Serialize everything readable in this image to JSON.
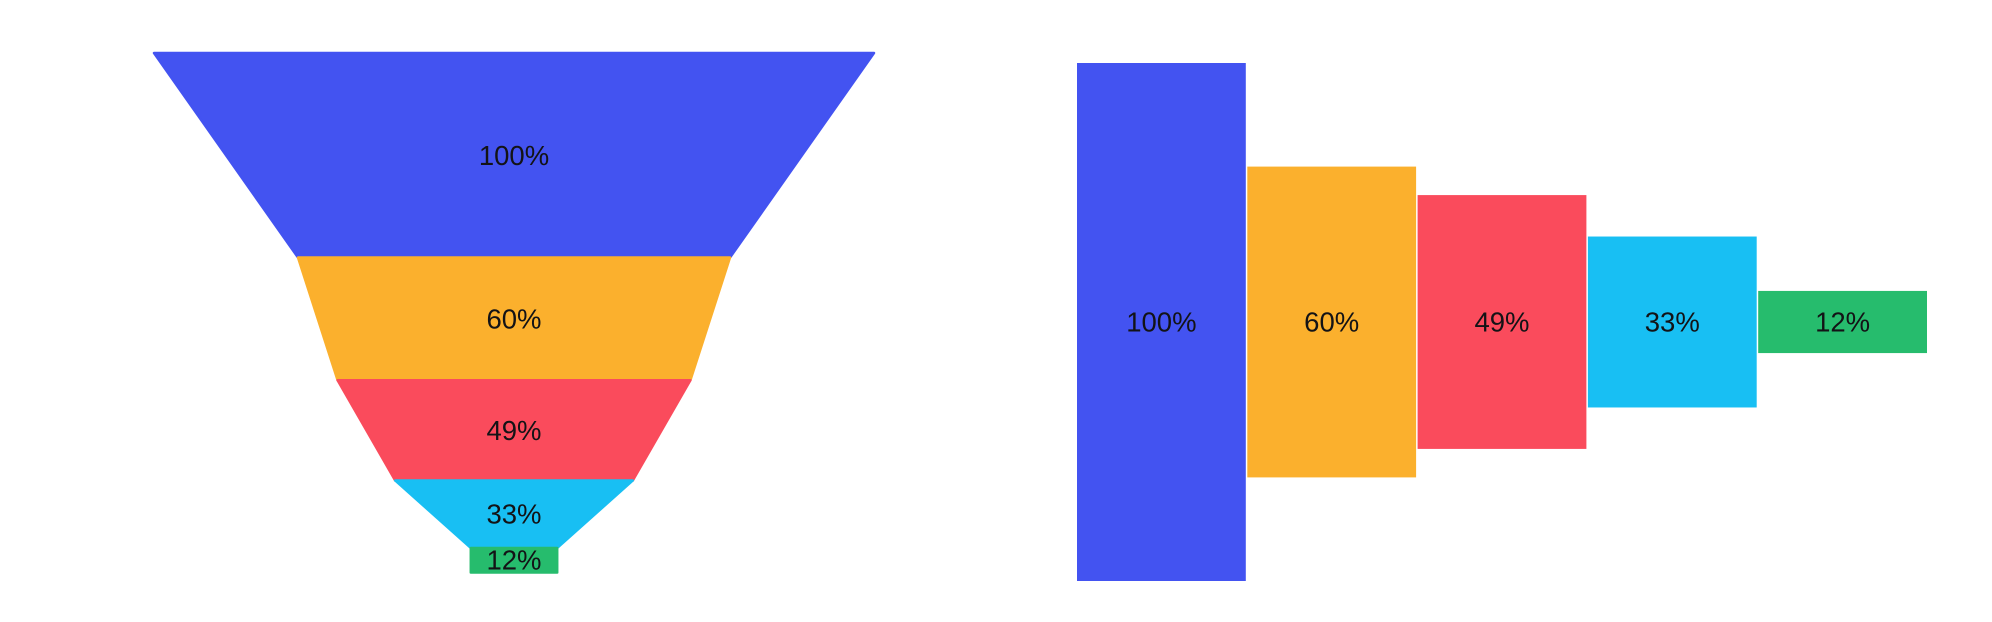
{
  "page": {
    "background": "#ffffff",
    "label_color": "#131316"
  },
  "chart_data": [
    {
      "type": "funnel",
      "orientation": "vertical",
      "title": "",
      "labels": [
        "100%",
        "60%",
        "49%",
        "33%",
        "12%"
      ],
      "values": [
        100,
        60,
        49,
        33,
        12
      ],
      "colors": [
        "#4353F1",
        "#FBB02D",
        "#FA4B5C",
        "#18BFF3",
        "#26BC6D"
      ],
      "label_color": "#131316",
      "legend": "none",
      "layout": {
        "shape": "tapered-funnel",
        "segment_heights": "proportional-to-value",
        "segment_widths": "proportional-to-value",
        "last_segment": "rectangle",
        "label_position": "segment-center",
        "grid": "off",
        "axes": "none"
      }
    },
    {
      "type": "funnel",
      "orientation": "horizontal",
      "title": "",
      "labels": [
        "100%",
        "60%",
        "49%",
        "33%",
        "12%"
      ],
      "values": [
        100,
        60,
        49,
        33,
        12
      ],
      "colors": [
        "#4353F1",
        "#FBB02D",
        "#FA4B5C",
        "#18BFF3",
        "#26BC6D"
      ],
      "label_color": "#131316",
      "legend": "none",
      "layout": {
        "shape": "centered-step-bars",
        "bar_widths": "equal",
        "bar_heights": "proportional-to-value",
        "vertical_alignment": "middle",
        "label_position": "middle-line",
        "grid": "off",
        "axes": "none"
      }
    }
  ]
}
